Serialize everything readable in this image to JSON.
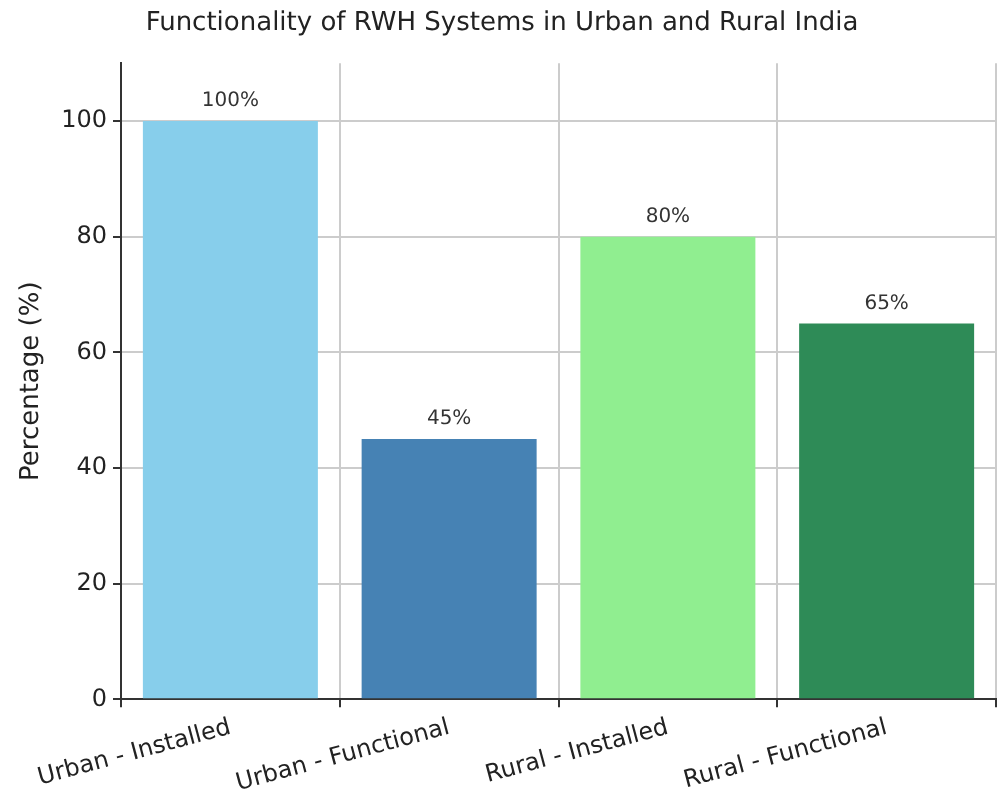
{
  "chart_data": {
    "type": "bar",
    "title": "Functionality of RWH Systems in Urban and Rural India",
    "ylabel": "Percentage (%)",
    "categories": [
      "Urban - Installed",
      "Urban - Functional",
      "Rural - Installed",
      "Rural - Functional"
    ],
    "values": [
      100,
      45,
      80,
      65
    ],
    "colors": [
      "#87ceeb",
      "#4682b4",
      "#90ee90",
      "#2e8b57"
    ],
    "value_labels": [
      "100%",
      "45%",
      "80%",
      "65%"
    ],
    "ylim": [
      0,
      110
    ],
    "yticks": [
      0,
      20,
      40,
      60,
      80,
      100
    ],
    "grid": true,
    "legend": false
  }
}
